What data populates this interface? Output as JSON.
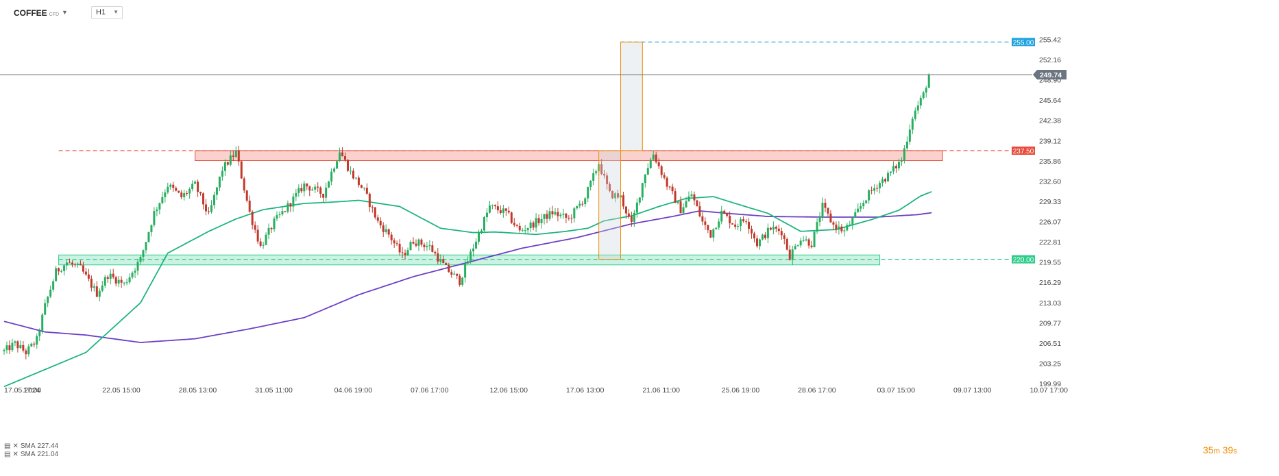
{
  "toolbar": {
    "symbol": "COFFEE",
    "symbol_sub": "CFD",
    "timeframe": "H1"
  },
  "countdown": {
    "minutes": "35",
    "minutes_unit": "m",
    "seconds": "39",
    "seconds_unit": "s"
  },
  "legend": [
    {
      "label": "SMA",
      "value": "227.44"
    },
    {
      "label": "SMA",
      "value": "221.04"
    }
  ],
  "colors": {
    "up": "#27ae60",
    "down": "#c0392b",
    "sma_fast": "#1db57e",
    "sma_slow": "#6c3fc4",
    "resistance": "#e74c3c",
    "support": "#2ecc8a",
    "target": "#1fa2e0",
    "projection": "#f08c00",
    "price_label": "#6b7480"
  },
  "chart_data": {
    "type": "candlestick",
    "symbol": "COFFEE",
    "timeframe": "H1",
    "ylim": [
      199.99,
      256.8
    ],
    "y_ticks": [
      "255.42",
      "252.16",
      "248.90",
      "245.64",
      "242.38",
      "239.12",
      "235.86",
      "232.60",
      "229.33",
      "226.07",
      "222.81",
      "219.55",
      "216.29",
      "213.03",
      "209.77",
      "206.51",
      "203.25",
      "199.99"
    ],
    "x_ticks": [
      {
        "label": "17.05.2024",
        "idx": 0
      },
      {
        "label": "17:00",
        "idx": 7
      },
      {
        "label": "22.05 15:00",
        "idx": 36
      },
      {
        "label": "28.05 13:00",
        "idx": 64
      },
      {
        "label": "31.05 11:00",
        "idx": 92
      },
      {
        "label": "04.06 19:00",
        "idx": 121
      },
      {
        "label": "07.06 17:00",
        "idx": 149
      },
      {
        "label": "12.06 15:00",
        "idx": 178
      },
      {
        "label": "17.06 13:00",
        "idx": 206
      },
      {
        "label": "21.06 11:00",
        "idx": 234
      },
      {
        "label": "25.06 19:00",
        "idx": 263
      },
      {
        "label": "28.06 17:00",
        "idx": 291
      },
      {
        "label": "03.07 15:00",
        "idx": 320
      },
      {
        "label": "09.07 13:00",
        "idx": 348
      },
      {
        "label": "10.07 17:00",
        "idx": 376
      }
    ],
    "anchors": [
      [
        0,
        205.2
      ],
      [
        4,
        206.4
      ],
      [
        8,
        205.0
      ],
      [
        12,
        207.0
      ],
      [
        15,
        212.5
      ],
      [
        19,
        218.0
      ],
      [
        23,
        219.5
      ],
      [
        28,
        218.5
      ],
      [
        34,
        214.5
      ],
      [
        38,
        217.5
      ],
      [
        44,
        216.0
      ],
      [
        50,
        220.0
      ],
      [
        55,
        227.5
      ],
      [
        60,
        232.0
      ],
      [
        65,
        230.0
      ],
      [
        70,
        232.0
      ],
      [
        75,
        227.0
      ],
      [
        80,
        234.5
      ],
      [
        85,
        237.3
      ],
      [
        90,
        227.5
      ],
      [
        94,
        222.0
      ],
      [
        99,
        226.0
      ],
      [
        103,
        228.0
      ],
      [
        110,
        232.0
      ],
      [
        117,
        230.5
      ],
      [
        123,
        237.5
      ],
      [
        127,
        234.0
      ],
      [
        132,
        231.0
      ],
      [
        137,
        226.0
      ],
      [
        141,
        224.0
      ],
      [
        146,
        220.5
      ],
      [
        150,
        223.0
      ],
      [
        156,
        222.0
      ],
      [
        162,
        218.5
      ],
      [
        167,
        216.5
      ],
      [
        172,
        222.0
      ],
      [
        178,
        228.5
      ],
      [
        184,
        227.5
      ],
      [
        189,
        224.5
      ],
      [
        195,
        226.0
      ],
      [
        201,
        227.5
      ],
      [
        207,
        226.5
      ],
      [
        213,
        230.0
      ],
      [
        218,
        235.5
      ],
      [
        222,
        230.5
      ],
      [
        226,
        230.0
      ],
      [
        230,
        225.5
      ],
      [
        235,
        234.0
      ],
      [
        238,
        237.0
      ],
      [
        243,
        232.0
      ],
      [
        248,
        228.0
      ],
      [
        252,
        230.5
      ],
      [
        256,
        226.0
      ],
      [
        259,
        224.0
      ],
      [
        263,
        227.5
      ],
      [
        268,
        225.5
      ],
      [
        272,
        226.5
      ],
      [
        276,
        222.5
      ],
      [
        281,
        225.0
      ],
      [
        285,
        224.5
      ],
      [
        288,
        220.5
      ],
      [
        292,
        223.5
      ],
      [
        296,
        222.5
      ],
      [
        300,
        228.5
      ],
      [
        304,
        225.5
      ],
      [
        308,
        224.5
      ],
      [
        312,
        227.0
      ],
      [
        316,
        230.0
      ],
      [
        320,
        232.0
      ],
      [
        324,
        233.5
      ],
      [
        329,
        236.0
      ],
      [
        333,
        243.0
      ],
      [
        337,
        246.5
      ],
      [
        339,
        249.74
      ]
    ],
    "candle_count": 340,
    "sma_fast": [
      [
        0,
        199.5
      ],
      [
        30,
        205.0
      ],
      [
        50,
        213.0
      ],
      [
        60,
        221.0
      ],
      [
        75,
        224.5
      ],
      [
        85,
        226.5
      ],
      [
        95,
        228.0
      ],
      [
        110,
        229.0
      ],
      [
        120,
        229.2
      ],
      [
        130,
        229.5
      ],
      [
        145,
        228.5
      ],
      [
        160,
        225.0
      ],
      [
        172,
        224.3
      ],
      [
        180,
        224.4
      ],
      [
        195,
        224.0
      ],
      [
        206,
        224.5
      ],
      [
        214,
        225.0
      ],
      [
        220,
        226.2
      ],
      [
        230,
        227.0
      ],
      [
        240,
        228.5
      ],
      [
        250,
        229.8
      ],
      [
        260,
        230.1
      ],
      [
        268,
        229.0
      ],
      [
        280,
        227.4
      ],
      [
        292,
        224.5
      ],
      [
        305,
        224.8
      ],
      [
        318,
        226.4
      ],
      [
        328,
        227.9
      ],
      [
        336,
        230.2
      ],
      [
        340,
        230.9
      ]
    ],
    "sma_slow": [
      [
        0,
        210.0
      ],
      [
        15,
        208.3
      ],
      [
        30,
        207.8
      ],
      [
        50,
        206.6
      ],
      [
        70,
        207.2
      ],
      [
        90,
        208.8
      ],
      [
        110,
        210.6
      ],
      [
        130,
        214.3
      ],
      [
        150,
        217.2
      ],
      [
        170,
        219.5
      ],
      [
        190,
        221.8
      ],
      [
        210,
        223.5
      ],
      [
        230,
        225.7
      ],
      [
        245,
        226.9
      ],
      [
        255,
        227.8
      ],
      [
        265,
        227.4
      ],
      [
        280,
        226.9
      ],
      [
        300,
        226.8
      ],
      [
        320,
        226.8
      ],
      [
        335,
        227.2
      ],
      [
        340,
        227.5
      ]
    ],
    "levels": [
      {
        "name": "resistance",
        "value": 237.5,
        "label": "237.50"
      },
      {
        "name": "support",
        "value": 220.0,
        "label": "220.00"
      },
      {
        "name": "target",
        "value": 255.0,
        "label": "255.00"
      }
    ],
    "zones": [
      {
        "name": "resistance-zone",
        "x0": 70,
        "x1": 344,
        "y0": 235.9,
        "y1": 237.5
      },
      {
        "name": "support-zone",
        "x0": 20,
        "x1": 321,
        "y0": 219.1,
        "y1": 220.7
      }
    ],
    "projection": [
      {
        "name": "drop-box",
        "x0": 218,
        "x1": 226,
        "y0": 220.0,
        "y1": 237.5
      },
      {
        "name": "rise-box",
        "x0": 226,
        "x1": 234,
        "y0": 237.5,
        "y1": 255.0
      }
    ],
    "last_price": 249.74,
    "last_price_label": "249.74"
  }
}
